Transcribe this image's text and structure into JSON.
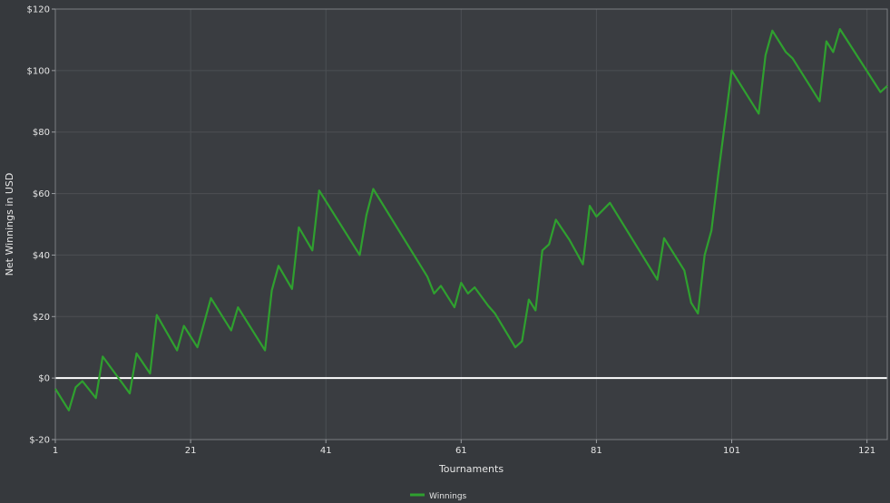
{
  "chart_data": {
    "type": "line",
    "xlabel": "Tournaments",
    "ylabel": "Net Winnings in USD",
    "xlim": [
      1,
      124
    ],
    "ylim": [
      -20,
      120
    ],
    "x_ticks": [
      1,
      21,
      41,
      61,
      81,
      101,
      121
    ],
    "y_ticks": [
      {
        "value": -20,
        "label": "$-20"
      },
      {
        "value": 0,
        "label": "$0"
      },
      {
        "value": 20,
        "label": "$20"
      },
      {
        "value": 40,
        "label": "$40"
      },
      {
        "value": 60,
        "label": "$60"
      },
      {
        "value": 80,
        "label": "$80"
      },
      {
        "value": 100,
        "label": "$100"
      },
      {
        "value": 120,
        "label": "$120"
      }
    ],
    "grid": true,
    "legend": "bottom-center",
    "colors": {
      "background": "#36393d",
      "plot_background": "#3a3d41",
      "grid": "#4c4f53",
      "zero_line": "#ffffff",
      "series": "#2fa02f"
    },
    "series": [
      {
        "name": "Winnings",
        "points": [
          [
            1,
            -3.5
          ],
          [
            3,
            -10.5
          ],
          [
            4,
            -3
          ],
          [
            5,
            -1
          ],
          [
            7,
            -6.5
          ],
          [
            8,
            7
          ],
          [
            11,
            -2
          ],
          [
            12,
            -5
          ],
          [
            13,
            8
          ],
          [
            15,
            1.5
          ],
          [
            16,
            20.5
          ],
          [
            19,
            9
          ],
          [
            20,
            17
          ],
          [
            22,
            10
          ],
          [
            24,
            26
          ],
          [
            27,
            15.5
          ],
          [
            28,
            23
          ],
          [
            32,
            9
          ],
          [
            33,
            28.5
          ],
          [
            34,
            36.5
          ],
          [
            36,
            29
          ],
          [
            37,
            49
          ],
          [
            39,
            41.5
          ],
          [
            40,
            61
          ],
          [
            46,
            40
          ],
          [
            47,
            53
          ],
          [
            48,
            61.5
          ],
          [
            56,
            33
          ],
          [
            57,
            27.5
          ],
          [
            58,
            30
          ],
          [
            60,
            23
          ],
          [
            61,
            31
          ],
          [
            62,
            27.5
          ],
          [
            63,
            29.5
          ],
          [
            65,
            23.5
          ],
          [
            66,
            21
          ],
          [
            69,
            10
          ],
          [
            70,
            12
          ],
          [
            71,
            25.5
          ],
          [
            72,
            22
          ],
          [
            73,
            41.5
          ],
          [
            74,
            43.5
          ],
          [
            75,
            51.5
          ],
          [
            77,
            45
          ],
          [
            79,
            37
          ],
          [
            80,
            56
          ],
          [
            81,
            52.5
          ],
          [
            83,
            57
          ],
          [
            90,
            32
          ],
          [
            91,
            45.5
          ],
          [
            94,
            35
          ],
          [
            95,
            24.5
          ],
          [
            96,
            21
          ],
          [
            97,
            40
          ],
          [
            98,
            48
          ],
          [
            99,
            66
          ],
          [
            100,
            83
          ],
          [
            101,
            100
          ],
          [
            105,
            86
          ],
          [
            106,
            105
          ],
          [
            107,
            113
          ],
          [
            109,
            106
          ],
          [
            110,
            104
          ],
          [
            114,
            90
          ],
          [
            115,
            109.5
          ],
          [
            116,
            106
          ],
          [
            117,
            113.5
          ],
          [
            123,
            93
          ],
          [
            124,
            95
          ]
        ]
      }
    ]
  }
}
